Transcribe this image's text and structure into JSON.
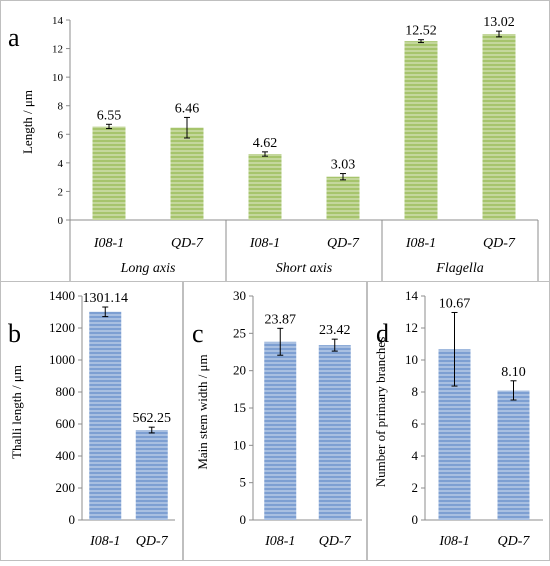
{
  "colors": {
    "green_bar": "#a6c46c",
    "green_stripe": "#ffffff",
    "blue_bar": "#7d9fd2",
    "blue_stripe": "#ffffff",
    "panel_border": "#bfbfbf",
    "axis": "#8c8c8c"
  },
  "chart_data": [
    {
      "panel_label": "a",
      "type": "bar",
      "ylabel": "Length / μm",
      "ylim": [
        0,
        14
      ],
      "yticks": [
        0,
        2,
        4,
        6,
        8,
        10,
        12,
        14
      ],
      "categories": [
        "I08-1",
        "QD-7",
        "I08-1",
        "QD-7",
        "I08-1",
        "QD-7"
      ],
      "groups": [
        "Long axis",
        "Short axis",
        "Flagella"
      ],
      "values": [
        6.55,
        6.46,
        4.62,
        3.03,
        12.52,
        13.02
      ],
      "value_labels": [
        "6.55",
        "6.46",
        "4.62",
        "3.03",
        "12.52",
        "13.02"
      ],
      "errors": [
        0.15,
        0.72,
        0.15,
        0.22,
        0.1,
        0.2
      ],
      "grid": false,
      "legend": "none"
    },
    {
      "panel_label": "b",
      "type": "bar",
      "ylabel": "Thalli length / μm",
      "ylim": [
        0,
        1400
      ],
      "yticks": [
        0,
        200,
        400,
        600,
        800,
        1000,
        1200,
        1400
      ],
      "categories": [
        "I08-1",
        "QD-7"
      ],
      "values": [
        1301.14,
        562.25
      ],
      "value_labels": [
        "1301.14",
        "562.25"
      ],
      "errors": [
        30,
        18
      ],
      "grid": false,
      "legend": "none"
    },
    {
      "panel_label": "c",
      "type": "bar",
      "ylabel": "Main stem width / μm",
      "ylim": [
        0,
        30
      ],
      "yticks": [
        0,
        5,
        10,
        15,
        20,
        25,
        30
      ],
      "categories": [
        "I08-1",
        "QD-7"
      ],
      "values": [
        23.87,
        23.42
      ],
      "value_labels": [
        "23.87",
        "23.42"
      ],
      "errors": [
        1.8,
        0.8
      ],
      "grid": false,
      "legend": "none"
    },
    {
      "panel_label": "d",
      "type": "bar",
      "ylabel": "Number of primary branches",
      "ylim": [
        0,
        14
      ],
      "yticks": [
        0,
        2,
        4,
        6,
        8,
        10,
        12,
        14
      ],
      "categories": [
        "I08-1",
        "QD-7"
      ],
      "values": [
        10.67,
        8.1
      ],
      "value_labels": [
        "10.67",
        "8.10"
      ],
      "errors": [
        2.3,
        0.6
      ],
      "grid": false,
      "legend": "none"
    }
  ]
}
